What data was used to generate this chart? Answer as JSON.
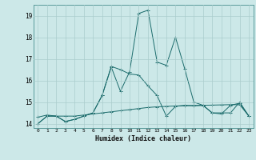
{
  "xlabel": "Humidex (Indice chaleur)",
  "ylabel": "",
  "bg_color": "#cce8e8",
  "grid_color": "#aacccc",
  "line_color": "#1a6b6b",
  "xlim": [
    -0.5,
    23.5
  ],
  "ylim": [
    13.8,
    19.5
  ],
  "yticks": [
    14,
    15,
    16,
    17,
    18,
    19
  ],
  "xticks": [
    0,
    1,
    2,
    3,
    4,
    5,
    6,
    7,
    8,
    9,
    10,
    11,
    12,
    13,
    14,
    15,
    16,
    17,
    18,
    19,
    20,
    21,
    22,
    23
  ],
  "series1_x": [
    0,
    1,
    2,
    3,
    4,
    5,
    6,
    7,
    8,
    9,
    10,
    11,
    12,
    13,
    14,
    15,
    16,
    17,
    18,
    19,
    20,
    21,
    22,
    23
  ],
  "series1_y": [
    14.0,
    14.35,
    14.35,
    14.35,
    14.35,
    14.4,
    14.45,
    14.5,
    14.55,
    14.6,
    14.65,
    14.7,
    14.75,
    14.78,
    14.8,
    14.82,
    14.83,
    14.84,
    14.85,
    14.86,
    14.87,
    14.88,
    14.88,
    14.35
  ],
  "series2_x": [
    0,
    1,
    2,
    3,
    4,
    5,
    6,
    7,
    8,
    9,
    10,
    11,
    12,
    13,
    14,
    15,
    16,
    17,
    18,
    19,
    20,
    21,
    22,
    23
  ],
  "series2_y": [
    14.3,
    14.4,
    14.35,
    14.1,
    14.2,
    14.35,
    14.5,
    15.3,
    16.65,
    16.5,
    16.3,
    16.25,
    15.75,
    15.3,
    14.35,
    14.8,
    14.85,
    14.83,
    14.85,
    14.5,
    14.45,
    14.85,
    14.95,
    14.35
  ],
  "series3_x": [
    0,
    1,
    2,
    3,
    4,
    5,
    6,
    7,
    8,
    9,
    10,
    11,
    12,
    13,
    14,
    15,
    16,
    17,
    18,
    19,
    20,
    21,
    22,
    23
  ],
  "series3_y": [
    14.0,
    14.35,
    14.35,
    14.1,
    14.2,
    14.35,
    14.5,
    15.3,
    16.62,
    15.5,
    16.4,
    19.1,
    19.25,
    16.85,
    16.7,
    18.0,
    16.55,
    15.0,
    14.85,
    14.5,
    14.5,
    14.5,
    15.0,
    14.35
  ]
}
